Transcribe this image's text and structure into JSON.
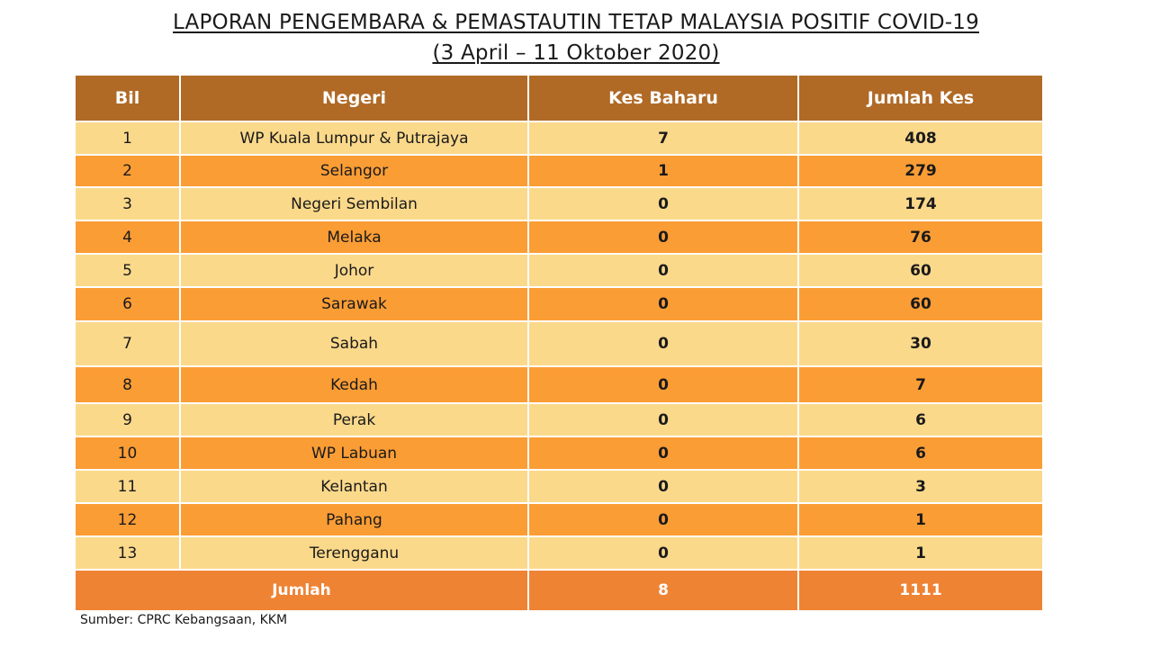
{
  "title": {
    "line1": "LAPORAN PENGEMBARA & PEMASTAUTIN TETAP MALAYSIA POSITIF COVID-19",
    "line2": "(3 April –  11 Oktober 2020)"
  },
  "table": {
    "headers": [
      "Bil",
      "Negeri",
      "Kes Baharu",
      "Jumlah Kes"
    ],
    "rows": [
      [
        "1",
        "WP Kuala Lumpur & Putrajaya",
        "7",
        "408"
      ],
      [
        "2",
        "Selangor",
        "1",
        "279"
      ],
      [
        "3",
        "Negeri Sembilan",
        "0",
        "174"
      ],
      [
        "4",
        "Melaka",
        "0",
        "76"
      ],
      [
        "5",
        "Johor",
        "0",
        "60"
      ],
      [
        "6",
        "Sarawak",
        "0",
        "60"
      ],
      [
        "7",
        "Sabah",
        "0",
        "30"
      ],
      [
        "8",
        "Kedah",
        "0",
        "7"
      ],
      [
        "9",
        "Perak",
        "0",
        "6"
      ],
      [
        "10",
        "WP Labuan",
        "0",
        "6"
      ],
      [
        "11",
        "Kelantan",
        "0",
        "3"
      ],
      [
        "12",
        "Pahang",
        "0",
        "1"
      ],
      [
        "13",
        "Terengganu",
        "0",
        "1"
      ]
    ],
    "total": {
      "label": "Jumlah",
      "kes_baharu": "8",
      "jumlah_kes": "1111"
    }
  },
  "source": "Sumber: CPRC Kebangsaan, KKM",
  "colors": {
    "header_bg": "#b06a26",
    "row_light": "#fbd98b",
    "row_dark": "#fb9d35",
    "total_bg": "#ef8334"
  }
}
